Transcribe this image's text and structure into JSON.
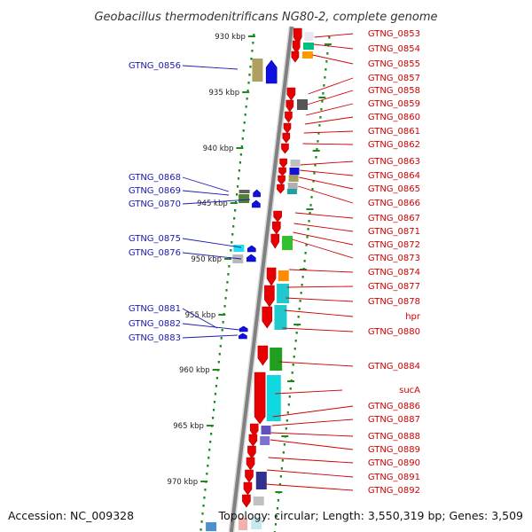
{
  "header": {
    "title": "Geobacillus thermodenitrificans NG80-2, complete genome"
  },
  "footer": {
    "accession": "Accession: NC_009328",
    "topology": "Topology: circular; Length: 3,550,319 bp; Genes: 3,509"
  },
  "scale_ticks": [
    "930 kbp",
    "935 kbp",
    "940 kbp",
    "945 kbp",
    "950 kbp",
    "955 kbp",
    "960 kbp",
    "965 kbp",
    "970 kbp"
  ],
  "genes_left": [
    "GTNG_0856",
    "GTNG_0868",
    "GTNG_0869",
    "GTNG_0870",
    "GTNG_0875",
    "GTNG_0876",
    "GTNG_0881",
    "GTNG_0882",
    "GTNG_0883"
  ],
  "genes_right": [
    "GTNG_0853",
    "GTNG_0854",
    "GTNG_0855",
    "GTNG_0857",
    "GTNG_0858",
    "GTNG_0859",
    "GTNG_0860",
    "GTNG_0861",
    "GTNG_0862",
    "GTNG_0863",
    "GTNG_0864",
    "GTNG_0865",
    "GTNG_0866",
    "GTNG_0867",
    "GTNG_0871",
    "GTNG_0872",
    "GTNG_0873",
    "GTNG_0874",
    "GTNG_0877",
    "GTNG_0878",
    "hpr",
    "GTNG_0880",
    "GTNG_0884",
    "sucA",
    "GTNG_0886",
    "GTNG_0887",
    "GTNG_0888",
    "GTNG_0889",
    "GTNG_0890",
    "GTNG_0891",
    "GTNG_0892"
  ],
  "colors": {
    "forward_strand": "#e60000",
    "reverse_strand": "#1010e0",
    "left_label": "#1a1ab0",
    "right_label": "#d00000",
    "backbone": "#808080",
    "scale_dots": "#1a8a1a"
  }
}
